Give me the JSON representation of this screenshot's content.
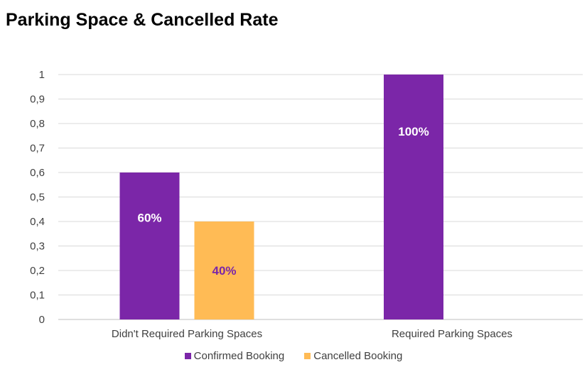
{
  "chart_data": {
    "type": "bar",
    "title": "Parking Space & Cancelled Rate",
    "categories": [
      "Didn't Required Parking Spaces",
      "Required Parking Spaces"
    ],
    "series": [
      {
        "name": "Confirmed Booking",
        "values": [
          0.6,
          1.0
        ],
        "labels": [
          "60%",
          "100%"
        ],
        "color": "#7B26A8",
        "label_color": "#ffffff"
      },
      {
        "name": "Cancelled Booking",
        "values": [
          0.4,
          null
        ],
        "labels": [
          "40%",
          null
        ],
        "color": "#FFBB55",
        "label_color": "#7B26A8"
      }
    ],
    "yticks": [
      "0",
      "0,1",
      "0,2",
      "0,3",
      "0,4",
      "0,5",
      "0,6",
      "0,7",
      "0,8",
      "0,9",
      "1"
    ],
    "ylim": [
      0,
      1
    ],
    "grid": true,
    "legend_position": "bottom"
  }
}
